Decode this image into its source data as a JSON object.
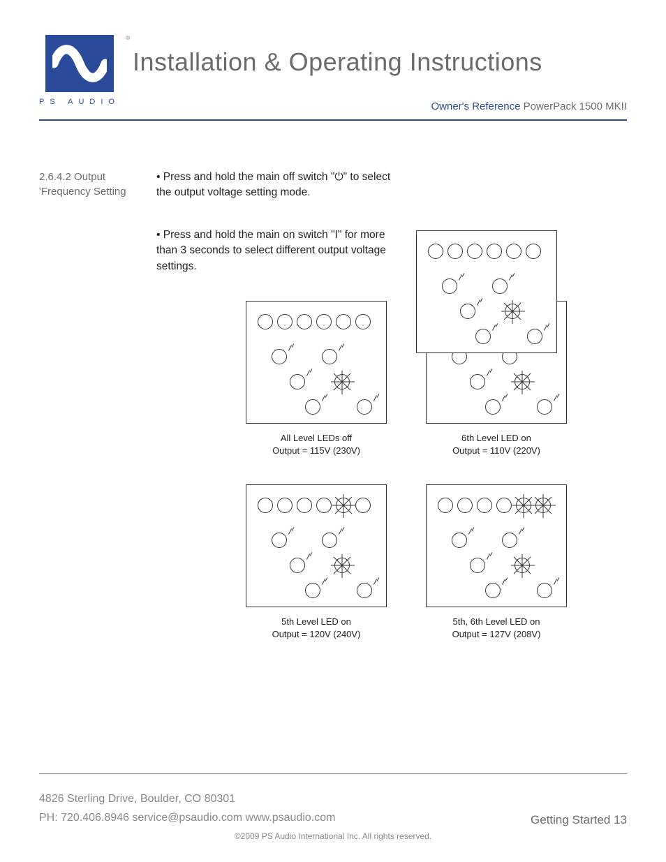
{
  "header": {
    "brand": "PS AUDIO",
    "registered": "®",
    "title": "Installation & Operating Instructions",
    "owners_ref_label": "Owner's Reference",
    "product": "PowerPack 1500 MKII",
    "logo_colors": {
      "bg": "#2a4a9a",
      "wave": "#ffffff"
    }
  },
  "section": {
    "number": "2.6.4.2",
    "name": "Output 'Frequency Setting"
  },
  "instructions": {
    "p1": "• Press and hold the main off switch \"⏻\" to select the output voltage setting mode.",
    "p2": "• Press and hold the main on switch \"I\" for more than 3 seconds to select different output voltage settings."
  },
  "diagrams": {
    "style": {
      "box_border": "#333333",
      "box_bg": "#ffffff",
      "led_count": 6,
      "bulb_positions_note": "six bulbs in staggered rows with small tick marks"
    },
    "hero": {
      "leds_on": [],
      "b4_on": true
    },
    "a": {
      "caption_l1": "All Level LEDs off",
      "caption_l2": "Output = 115V (230V)",
      "leds_on": [],
      "b4_on": true
    },
    "b": {
      "caption_l1": "6th Level LED on",
      "caption_l2": "Output = 110V (220V)",
      "leds_on": [
        6
      ],
      "b4_on": true
    },
    "c": {
      "caption_l1": "5th Level LED on",
      "caption_l2": "Output = 120V (240V)",
      "leds_on": [
        5
      ],
      "b4_on": true
    },
    "d": {
      "caption_l1": "5th, 6th Level LED on",
      "caption_l2": "Output = 127V (208V)",
      "leds_on": [
        5,
        6
      ],
      "b4_on": true
    }
  },
  "footer": {
    "address": "4826 Sterling Drive, Boulder, CO 80301",
    "contact": "PH: 720.406.8946 service@psaudio.com www.psaudio.com",
    "page_label": "Getting Started 13",
    "copyright": "©2009 PS Audio International Inc.  All rights reserved."
  }
}
